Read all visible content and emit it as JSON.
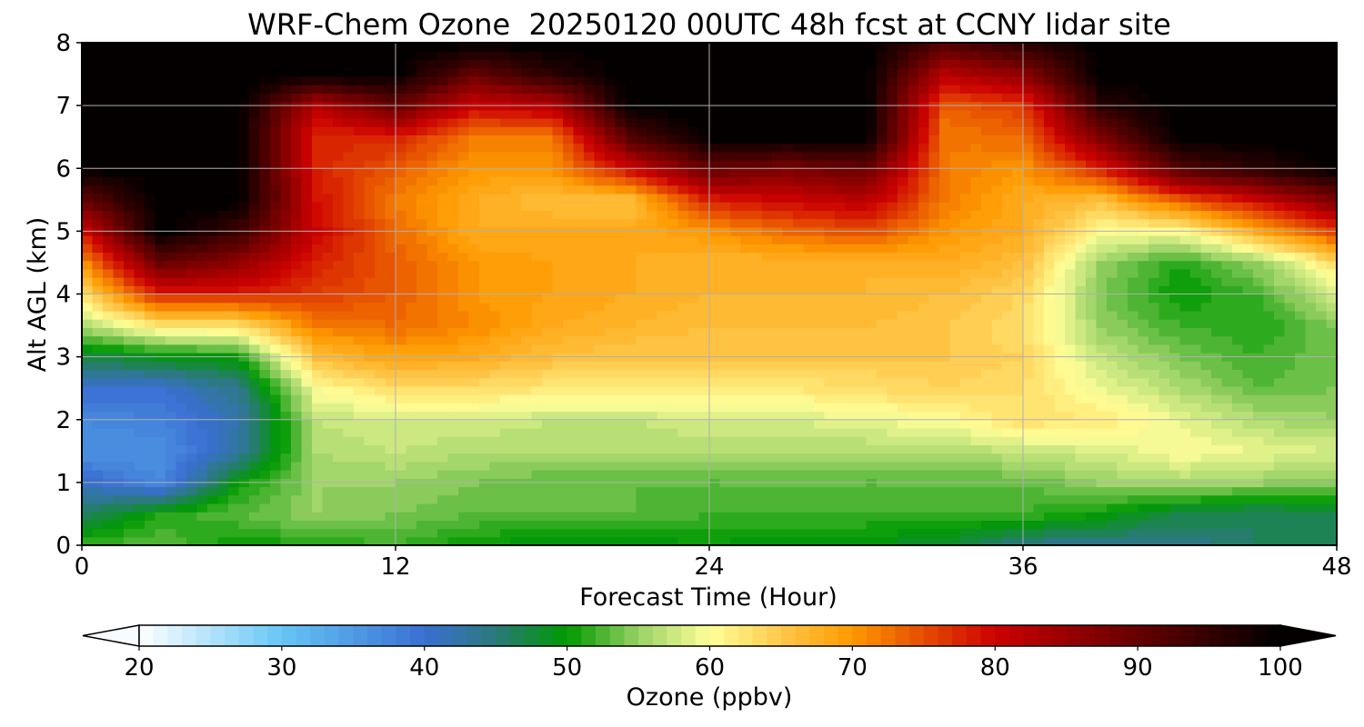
{
  "chart_data": {
    "type": "heatmap",
    "title": "WRF-Chem Ozone  20250120 00UTC 48h fcst at CCNY lidar site",
    "xlabel": "Forecast Time (Hour)",
    "ylabel": "Alt AGL (km)",
    "xlim": [
      0,
      48
    ],
    "ylim": [
      0,
      8
    ],
    "xticks": [
      0,
      12,
      24,
      36,
      48
    ],
    "yticks": [
      0,
      1,
      2,
      3,
      4,
      5,
      6,
      7,
      8
    ],
    "grid": true,
    "x": [
      0,
      3,
      6,
      9,
      12,
      15,
      18,
      21,
      24,
      27,
      30,
      33,
      36,
      39,
      42,
      45,
      48
    ],
    "y": [
      0,
      0.5,
      1,
      1.5,
      2,
      2.5,
      3,
      3.5,
      4,
      4.5,
      5,
      5.5,
      6,
      6.5,
      7,
      7.5,
      8
    ],
    "z": [
      [
        52,
        53,
        50,
        51,
        52,
        50,
        49,
        49,
        50,
        49,
        49,
        48,
        44,
        44,
        44,
        46,
        47
      ],
      [
        46,
        51,
        53,
        55,
        54,
        53,
        53,
        53,
        52,
        52,
        52,
        52,
        52,
        50,
        47,
        46,
        47
      ],
      [
        41,
        37,
        50,
        55,
        55,
        54,
        53,
        53,
        53,
        53,
        53,
        53,
        53,
        55,
        56,
        55,
        54
      ],
      [
        36,
        36,
        43,
        56,
        57,
        56,
        56,
        56,
        56,
        56,
        56,
        56,
        57,
        58,
        60,
        59,
        58
      ],
      [
        37,
        38,
        42,
        57,
        58,
        58,
        57,
        57,
        58,
        58,
        59,
        60,
        63,
        62,
        59,
        56,
        55
      ],
      [
        40,
        40,
        44,
        60,
        63,
        63,
        62,
        62,
        62,
        62,
        63,
        64,
        63,
        59,
        56,
        53,
        54
      ],
      [
        47,
        49,
        50,
        66,
        69,
        68,
        66,
        65,
        65,
        65,
        65,
        65,
        64,
        57,
        54,
        52,
        54
      ],
      [
        56,
        62,
        63,
        72,
        73,
        71,
        68,
        67,
        66,
        66,
        66,
        65,
        63,
        55,
        52,
        51,
        54
      ],
      [
        63,
        78,
        78,
        76,
        74,
        70,
        69,
        68,
        67,
        67,
        67,
        66,
        64,
        54,
        50,
        52,
        58
      ],
      [
        70,
        90,
        86,
        78,
        74,
        70,
        69,
        68,
        67,
        67,
        67,
        68,
        66,
        55,
        51,
        55,
        63
      ],
      [
        79,
        100,
        94,
        80,
        73,
        68,
        68,
        68,
        70,
        73,
        75,
        70,
        68,
        60,
        60,
        68,
        76
      ],
      [
        90,
        100,
        100,
        79,
        72,
        68,
        66,
        66,
        78,
        80,
        82,
        72,
        68,
        66,
        74,
        80,
        88
      ],
      [
        100,
        100,
        100,
        78,
        74,
        70,
        70,
        80,
        90,
        88,
        90,
        72,
        70,
        78,
        92,
        96,
        100
      ],
      [
        100,
        100,
        100,
        77,
        78,
        72,
        72,
        92,
        100,
        100,
        100,
        72,
        73,
        88,
        100,
        100,
        100
      ],
      [
        100,
        100,
        100,
        82,
        90,
        80,
        82,
        100,
        100,
        100,
        100,
        74,
        76,
        96,
        100,
        100,
        100
      ],
      [
        100,
        100,
        100,
        100,
        100,
        90,
        96,
        100,
        100,
        100,
        100,
        82,
        86,
        100,
        100,
        100,
        100
      ],
      [
        100,
        100,
        100,
        100,
        100,
        100,
        100,
        100,
        100,
        100,
        100,
        92,
        96,
        100,
        100,
        100,
        100
      ]
    ],
    "colorbar": {
      "label": "Ozone  (ppbv)",
      "min": 20,
      "max": 100,
      "ticks": [
        20,
        30,
        40,
        50,
        60,
        70,
        80,
        90,
        100
      ],
      "extend": "both",
      "levels": 80,
      "stops": [
        {
          "v": 20,
          "c": "#ffffff"
        },
        {
          "v": 30,
          "c": "#66c6f5"
        },
        {
          "v": 40,
          "c": "#3a6fd2"
        },
        {
          "v": 45,
          "c": "#2a7a7a"
        },
        {
          "v": 50,
          "c": "#009900"
        },
        {
          "v": 55,
          "c": "#99d166"
        },
        {
          "v": 60,
          "c": "#ffff99"
        },
        {
          "v": 65,
          "c": "#ffc84a"
        },
        {
          "v": 70,
          "c": "#ff9900"
        },
        {
          "v": 80,
          "c": "#cc0000"
        },
        {
          "v": 90,
          "c": "#660000"
        },
        {
          "v": 100,
          "c": "#000000"
        }
      ]
    }
  }
}
